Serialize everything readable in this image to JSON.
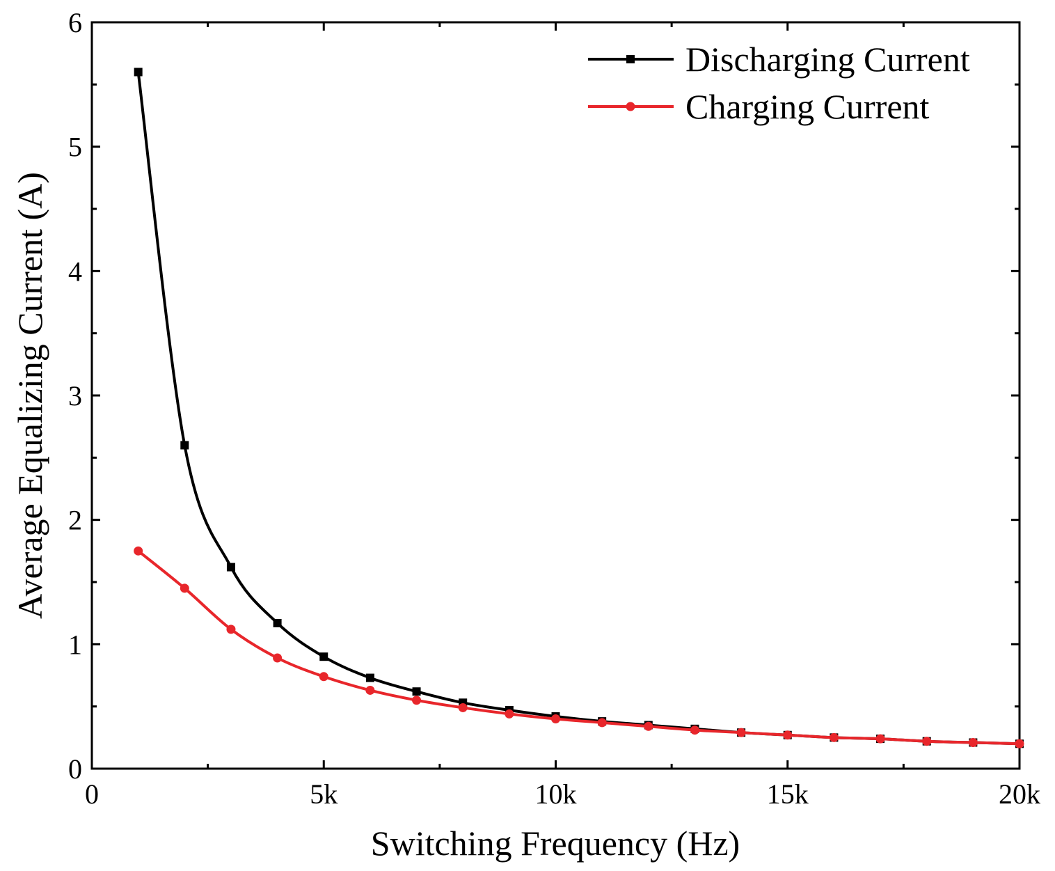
{
  "chart_data": {
    "type": "line",
    "title": "",
    "xlabel": "Switching Frequency (Hz)",
    "ylabel": "Average Equalizing Current (A)",
    "xlim": [
      0,
      20000
    ],
    "ylim": [
      0,
      6
    ],
    "grid": false,
    "legend_position": "top-right",
    "x_ticks": [
      {
        "value": 0,
        "label": "0"
      },
      {
        "value": 5000,
        "label": "5k"
      },
      {
        "value": 10000,
        "label": "10k"
      },
      {
        "value": 15000,
        "label": "15k"
      },
      {
        "value": 20000,
        "label": "20k"
      }
    ],
    "y_ticks": [
      {
        "value": 0,
        "label": "0"
      },
      {
        "value": 1,
        "label": "1"
      },
      {
        "value": 2,
        "label": "2"
      },
      {
        "value": 3,
        "label": "3"
      },
      {
        "value": 4,
        "label": "4"
      },
      {
        "value": 5,
        "label": "5"
      },
      {
        "value": 6,
        "label": "6"
      }
    ],
    "x": [
      1000,
      2000,
      3000,
      4000,
      5000,
      6000,
      7000,
      8000,
      9000,
      10000,
      11000,
      12000,
      13000,
      14000,
      15000,
      16000,
      17000,
      18000,
      19000,
      20000
    ],
    "series": [
      {
        "name": "Discharging Current",
        "color": "#000000",
        "marker": "square",
        "values": [
          5.6,
          2.6,
          1.62,
          1.17,
          0.9,
          0.73,
          0.62,
          0.53,
          0.47,
          0.42,
          0.38,
          0.35,
          0.32,
          0.29,
          0.27,
          0.25,
          0.24,
          0.22,
          0.21,
          0.2
        ]
      },
      {
        "name": "Charging Current",
        "color": "#e8262b",
        "marker": "circle",
        "values": [
          1.75,
          1.45,
          1.12,
          0.89,
          0.74,
          0.63,
          0.55,
          0.49,
          0.44,
          0.4,
          0.37,
          0.34,
          0.31,
          0.29,
          0.27,
          0.25,
          0.24,
          0.22,
          0.21,
          0.2
        ]
      }
    ]
  }
}
